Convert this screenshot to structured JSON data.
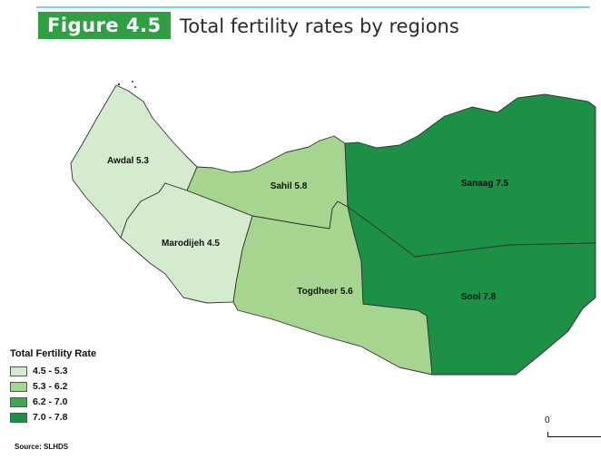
{
  "figure": {
    "label": "Figure 4.5",
    "title": "Total fertility rates by regions"
  },
  "regions": [
    {
      "name": "Awdal",
      "value": 5.3,
      "label": "Awdal 5.3",
      "color": "#d4ebcd"
    },
    {
      "name": "Marodijeh",
      "value": 4.5,
      "label": "Marodijeh 4.5",
      "color": "#d4ebcd"
    },
    {
      "name": "Sahil",
      "value": 5.8,
      "label": "Sahil 5.8",
      "color": "#a6d58f"
    },
    {
      "name": "Togdheer",
      "value": 5.6,
      "label": "Togdheer 5.6",
      "color": "#a6d58f"
    },
    {
      "name": "Sanaag",
      "value": 7.5,
      "label": "Sanaag 7.5",
      "color": "#1c9146"
    },
    {
      "name": "Sool",
      "value": 7.8,
      "label": "Sool 7.8",
      "color": "#1c9146"
    }
  ],
  "legend": {
    "title": "Total Fertility Rate",
    "items": [
      {
        "label": "4.5 - 5.3",
        "color": "#d4ebcd"
      },
      {
        "label": "5.3 - 6.2",
        "color": "#a6d58f"
      },
      {
        "label": "6.2 - 7.0",
        "color": "#3aac4e"
      },
      {
        "label": "7.0 - 7.8",
        "color": "#1c9146"
      }
    ]
  },
  "source": "Source: SLHDS",
  "scale": {
    "zero_label": "0"
  },
  "colors": {
    "badge": "#2ea043",
    "rule": "#7fd3e8"
  }
}
